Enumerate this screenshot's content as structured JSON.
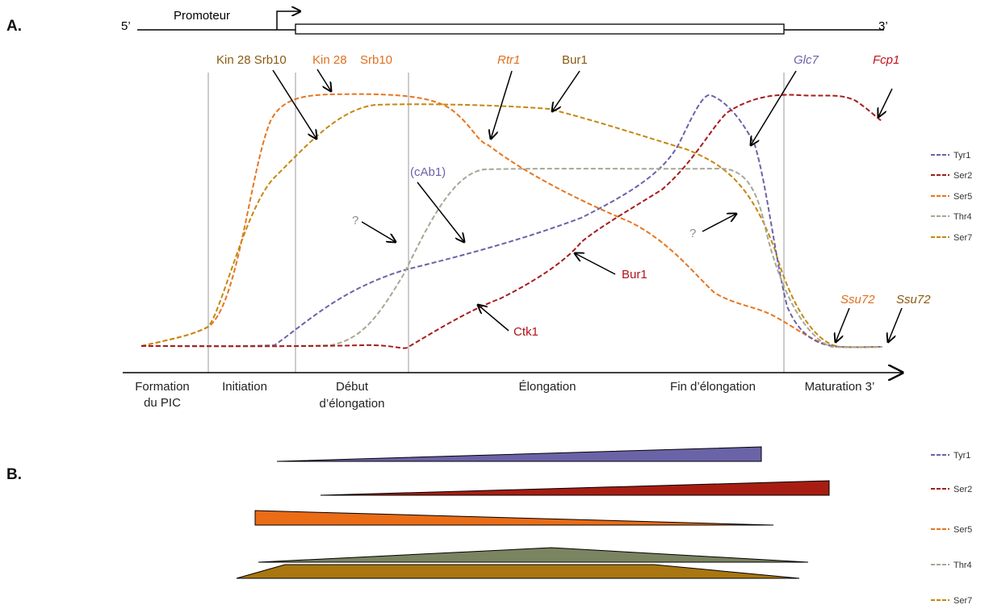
{
  "panel_a": {
    "label": "A.",
    "gene": {
      "five_prime": "5’",
      "three_prime": "3’",
      "promoter": "Promoteur"
    },
    "stages": [
      "Formation",
      "du PIC",
      "Initiation",
      "Début",
      "d’élongation",
      "Élongation",
      "Fin d’élongation",
      "Maturation 3’"
    ],
    "enzyme_labels": {
      "kin28_srb10_a": "Kin 28 Srb10",
      "kin28": "Kin 28",
      "srb10": "Srb10",
      "rtr1": "Rtr1",
      "bur1_top": "Bur1",
      "glc7": "Glc7",
      "fcp1": "Fcp1",
      "cab1": "(cAb1)",
      "question_1": "?",
      "question_2": "?",
      "bur1_mid": "Bur1",
      "ctk1": "Ctk1",
      "ssu72_a": "Ssu72",
      "ssu72_b": "Ssu72"
    },
    "legend": [
      "Tyr1",
      "Ser2",
      "Ser5",
      "Thr4",
      "Ser7"
    ]
  },
  "panel_b": {
    "label": "B.",
    "legend": [
      "Tyr1",
      "Ser2",
      "Ser5",
      "Thr4",
      "Ser7"
    ]
  },
  "colors": {
    "Tyr1": "#6b63a8",
    "Ser2": "#a51d1d",
    "Ser5": "#e8751e",
    "Thr4": "#929b7f",
    "Ser7": "#c4880f",
    "Tyr1_fill": "#6b63a8",
    "Ser2_fill": "#a81d12",
    "Ser5_fill": "#ea6c16",
    "Thr4_fill": "#7a8461",
    "Ser7_fill": "#a97610",
    "kin_brown": "#8a5a12",
    "rtr_orange": "#e07020",
    "glc_purple": "#6b63a8",
    "fcp_red": "#c0151a",
    "q_gray": "#8c8c8c"
  }
}
